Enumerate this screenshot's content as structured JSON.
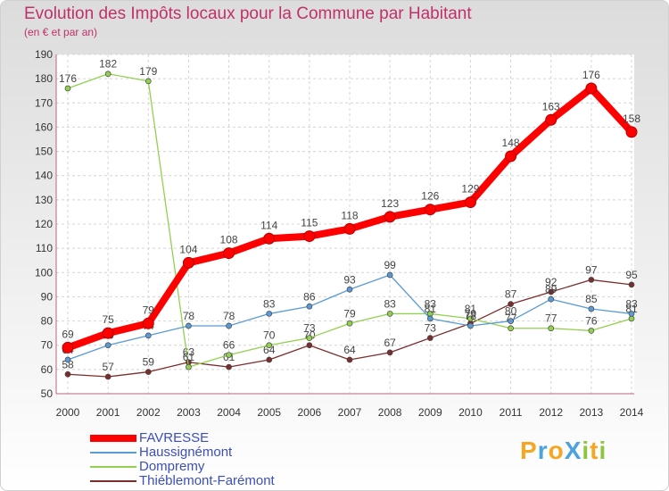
{
  "chart_data": {
    "type": "line",
    "title": "Evolution des Impôts locaux pour la Commune par Habitant",
    "subtitle": "(en € et par an)",
    "xlabel": "",
    "ylabel": "",
    "ylim": [
      50,
      190
    ],
    "yticks": [
      50,
      60,
      70,
      80,
      90,
      100,
      110,
      120,
      130,
      140,
      150,
      160,
      170,
      180,
      190
    ],
    "x": [
      "2000",
      "2001",
      "2002",
      "2003",
      "2004",
      "2005",
      "2006",
      "2007",
      "2008",
      "2009",
      "2010",
      "2011",
      "2012",
      "2013",
      "2014"
    ],
    "legend_position": "bottom-left",
    "series": [
      {
        "name": "FAVRESSE",
        "color": "#ff0000",
        "values": [
          69,
          75,
          79,
          104,
          108,
          114,
          115,
          118,
          123,
          126,
          129,
          148,
          163,
          176,
          158
        ]
      },
      {
        "name": "Haussignémont",
        "color": "#5b9bd5",
        "values": [
          64,
          70,
          74,
          78,
          78,
          83,
          86,
          93,
          99,
          81,
          78,
          80,
          89,
          85,
          83
        ]
      },
      {
        "name": "Dompremy",
        "color": "#92d050",
        "values": [
          176,
          182,
          179,
          61,
          66,
          70,
          73,
          79,
          83,
          83,
          81,
          77,
          77,
          76,
          81
        ]
      },
      {
        "name": "Thiéblemont-Farémont",
        "color": "#7b2d2d",
        "values": [
          58,
          57,
          59,
          63,
          61,
          64,
          70,
          64,
          67,
          73,
          79,
          87,
          92,
          97,
          95
        ]
      }
    ]
  },
  "logo": {
    "text": "ProXiti",
    "letters": [
      "P",
      "r",
      "o",
      "X",
      "i",
      "t",
      "i"
    ],
    "colors": [
      "#f5a623",
      "#4aa3df",
      "#f5a623",
      "#4aa3df",
      "#8cc63f",
      "#f5a623",
      "#8cc63f"
    ]
  }
}
